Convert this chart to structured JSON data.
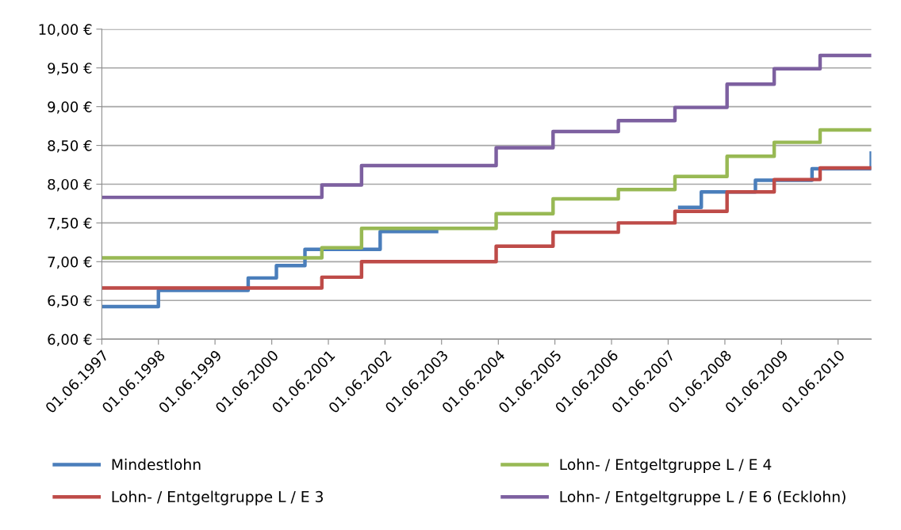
{
  "chart_data": {
    "type": "step",
    "ylim": [
      6,
      10
    ],
    "yticks": [
      {
        "value": 6,
        "label": "6,00 €"
      },
      {
        "value": 6.5,
        "label": "6,50 €"
      },
      {
        "value": 7,
        "label": "7,00 €"
      },
      {
        "value": 7.5,
        "label": "7,50 €"
      },
      {
        "value": 8,
        "label": "8,00 €"
      },
      {
        "value": 8.5,
        "label": "8,50 €"
      },
      {
        "value": 9,
        "label": "9,00 €"
      },
      {
        "value": 9.5,
        "label": "9,50 €"
      },
      {
        "value": 10,
        "label": "10,00 €"
      }
    ],
    "xlim": [
      "1997-06-01",
      "2011-01-01"
    ],
    "xticks": [
      {
        "value": "1997-06-01",
        "label": "01.06.1997"
      },
      {
        "value": "1998-06-01",
        "label": "01.06.1998"
      },
      {
        "value": "1999-06-01",
        "label": "01.06.1999"
      },
      {
        "value": "2000-06-01",
        "label": "01.06.2000"
      },
      {
        "value": "2001-06-01",
        "label": "01.06.2001"
      },
      {
        "value": "2002-06-01",
        "label": "01.06.2002"
      },
      {
        "value": "2003-06-01",
        "label": "01.06.2003"
      },
      {
        "value": "2004-06-01",
        "label": "01.06.2004"
      },
      {
        "value": "2005-06-01",
        "label": "01.06.2005"
      },
      {
        "value": "2006-06-01",
        "label": "01.06.2006"
      },
      {
        "value": "2007-06-01",
        "label": "01.06.2007"
      },
      {
        "value": "2008-06-01",
        "label": "01.06.2008"
      },
      {
        "value": "2009-06-01",
        "label": "01.06.2009"
      },
      {
        "value": "2010-06-01",
        "label": "01.06.2010"
      }
    ],
    "grid": "y",
    "legend": "bottom",
    "marker": "none",
    "line_style": "solid",
    "series": [
      {
        "name": "Mindestlohn",
        "color": "#4a7ebb",
        "x": [
          "1997-06-01",
          "1998-06-01",
          "2000-01-01",
          "2000-07-01",
          "2001-01-01",
          "2002-05-01",
          "2003-04-30",
          "2007-08-15",
          "2008-01-01",
          "2008-12-15",
          "2009-12-15",
          "2011-01-01"
        ],
        "values": [
          6.42,
          6.63,
          6.79,
          6.95,
          7.16,
          7.39,
          null,
          7.7,
          7.9,
          8.05,
          8.2,
          8.4
        ]
      },
      {
        "name": "Lohn- / Entgeltgruppe L / E 3",
        "color": "#be4b48",
        "x": [
          "1997-06-01",
          "2001-04-20",
          "2002-01-01",
          "2004-05-18",
          "2005-05-20",
          "2006-07-15",
          "2007-07-15",
          "2008-06-15",
          "2009-04-15",
          "2010-02-05",
          "2011-01-01"
        ],
        "values": [
          6.66,
          6.8,
          7.0,
          7.2,
          7.38,
          7.5,
          7.65,
          7.9,
          8.06,
          8.21,
          8.21
        ]
      },
      {
        "name": "Lohn- / Entgeltgruppe L / E 4",
        "color": "#98b954",
        "x": [
          "1997-06-01",
          "2001-04-20",
          "2002-01-01",
          "2004-05-18",
          "2005-05-20",
          "2006-07-15",
          "2007-07-15",
          "2008-06-15",
          "2009-04-15",
          "2010-02-05",
          "2011-01-01"
        ],
        "values": [
          7.05,
          7.18,
          7.43,
          7.62,
          7.81,
          7.93,
          8.1,
          8.36,
          8.54,
          8.7,
          8.7
        ]
      },
      {
        "name": "Lohn- / Entgeltgruppe L / E 6 (Ecklohn)",
        "color": "#7d60a0",
        "x": [
          "1997-06-01",
          "2001-04-20",
          "2002-01-01",
          "2004-05-18",
          "2005-05-20",
          "2006-07-15",
          "2007-07-15",
          "2008-06-15",
          "2009-04-15",
          "2010-02-05",
          "2011-01-01"
        ],
        "values": [
          7.83,
          7.99,
          8.24,
          8.47,
          8.68,
          8.82,
          8.99,
          9.29,
          9.49,
          9.66,
          9.66
        ]
      }
    ]
  }
}
